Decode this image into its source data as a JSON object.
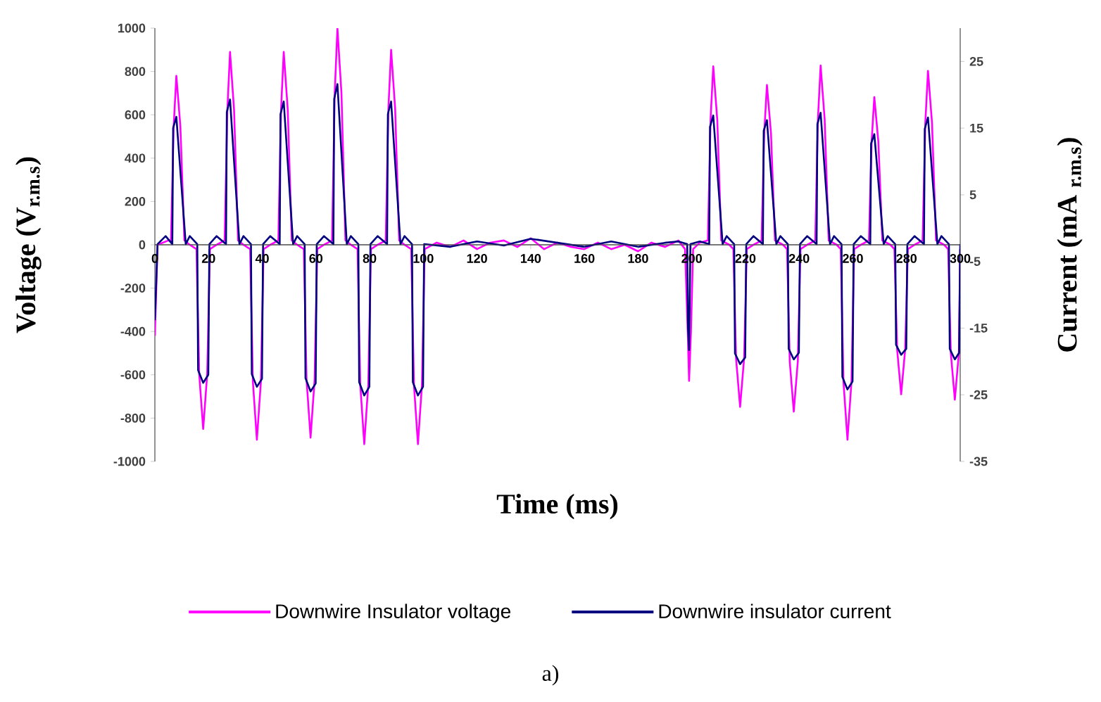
{
  "chart_data": {
    "type": "line",
    "xlabel": "Time (ms)",
    "ylabel": "Voltage (V$_{r.m.s}$)",
    "y2label": "Current (mA $_{r.m.s}$)",
    "annotations": [
      "a)"
    ],
    "xlim": [
      0,
      300
    ],
    "xticks": [
      0,
      20,
      40,
      60,
      80,
      100,
      120,
      140,
      160,
      180,
      200,
      220,
      240,
      260,
      280,
      300
    ],
    "ylim": [
      -1000,
      1000
    ],
    "yticks": [
      -1000,
      -800,
      -600,
      -400,
      -200,
      0,
      200,
      400,
      600,
      800,
      1000
    ],
    "y2lim": [
      -35,
      30
    ],
    "y2ticks": [
      -35,
      -25,
      -15,
      -5,
      5,
      15,
      25
    ],
    "legend": "bottom",
    "series": [
      {
        "name": "Downwire Insulator voltage",
        "color": "#ff00ff",
        "x": [
          0,
          1,
          5,
          6,
          7,
          8,
          9.5,
          11,
          13,
          15.5,
          16.5,
          18,
          19.5,
          20.5,
          23,
          26,
          27,
          28,
          29.5,
          31,
          33,
          35.5,
          36.5,
          38,
          39.5,
          40.5,
          43,
          46,
          47,
          48,
          49.5,
          51,
          53,
          55.5,
          56.5,
          58,
          59.5,
          60.5,
          63,
          66,
          67,
          68,
          69.5,
          71,
          73,
          75.5,
          76.5,
          78,
          79.5,
          80.5,
          83,
          86,
          87,
          88,
          89.5,
          91,
          93,
          95.5,
          96.5,
          98,
          99.5,
          100.5,
          105,
          110,
          115,
          120,
          125,
          130,
          135,
          140,
          145,
          150,
          155,
          160,
          165,
          170,
          175,
          180,
          185,
          190,
          195,
          197.5,
          198.5,
          199,
          199.7,
          200.5,
          203,
          206,
          207,
          208,
          209.5,
          211,
          214,
          215.5,
          216.5,
          218,
          219.5,
          220.5,
          223,
          226,
          227,
          228,
          229.5,
          231,
          234,
          235.5,
          236.5,
          238,
          239.5,
          240.5,
          243,
          246,
          247,
          248,
          249.5,
          251,
          254,
          255.5,
          256.5,
          258,
          259.5,
          260.5,
          263,
          266,
          267,
          268,
          269.5,
          271,
          274,
          275.5,
          276.5,
          278,
          279.5,
          280.5,
          283,
          286,
          287,
          288,
          289.5,
          291,
          294,
          295.5,
          296.5,
          298,
          299.5,
          300
        ],
        "values": [
          -420,
          0,
          20,
          20,
          546,
          780,
          546,
          20,
          0,
          -20,
          -595,
          -850,
          -595,
          -20,
          0,
          20,
          623,
          890,
          623,
          20,
          0,
          -20,
          -630,
          -900,
          -630,
          -20,
          0,
          20,
          623,
          890,
          623,
          20,
          0,
          -20,
          -623,
          -890,
          -623,
          -20,
          0,
          20,
          700,
          1000,
          700,
          20,
          0,
          -20,
          -644,
          -920,
          -644,
          -20,
          0,
          20,
          630,
          900,
          630,
          20,
          0,
          -20,
          -644,
          -920,
          -644,
          -20,
          10,
          -10,
          20,
          -20,
          10,
          20,
          -10,
          30,
          -20,
          10,
          -10,
          -20,
          10,
          -20,
          0,
          -30,
          10,
          -10,
          20,
          -20,
          -400,
          -628,
          -400,
          -20,
          10,
          20,
          577,
          824,
          577,
          20,
          0,
          -20,
          -524,
          -748,
          -524,
          -20,
          0,
          20,
          517,
          738,
          517,
          20,
          0,
          -20,
          -539,
          -770,
          -539,
          -20,
          0,
          20,
          580,
          828,
          580,
          20,
          0,
          -20,
          -630,
          -900,
          -630,
          -20,
          0,
          20,
          477,
          682,
          477,
          20,
          0,
          -20,
          -483,
          -690,
          -483,
          -20,
          0,
          20,
          562,
          803,
          562,
          20,
          0,
          -20,
          -500,
          -715,
          -500,
          -20
        ]
      },
      {
        "name": "Downwire insulator current",
        "color": "#000080",
        "axis": "y2",
        "x": [
          0,
          1,
          4,
          6.5,
          6.8,
          8,
          11.5,
          13,
          15.8,
          16.1,
          18,
          19.9,
          20.3,
          23,
          26.5,
          26.8,
          28,
          31.5,
          33,
          35.8,
          36.1,
          38,
          39.9,
          40.3,
          43,
          46.5,
          46.8,
          48,
          51.5,
          53,
          55.8,
          56.1,
          58,
          59.9,
          60.3,
          63,
          66.5,
          66.8,
          68,
          71.5,
          73,
          75.8,
          76.1,
          78,
          79.9,
          80.3,
          83,
          86.5,
          86.8,
          88,
          91.5,
          93,
          95.8,
          96.1,
          98,
          99.9,
          100.3,
          110,
          120,
          130,
          140,
          150,
          160,
          170,
          180,
          190,
          195,
          198.3,
          198.6,
          199,
          199.5,
          203,
          206.5,
          206.8,
          208,
          211.5,
          213,
          215.8,
          216.1,
          218,
          219.9,
          220.3,
          223,
          226.5,
          226.8,
          228,
          231.5,
          233,
          235.8,
          236.1,
          238,
          239.9,
          240.3,
          243,
          246.5,
          246.8,
          248,
          251.5,
          253,
          255.8,
          256.1,
          258,
          259.9,
          260.3,
          263,
          266.5,
          266.8,
          268,
          271.5,
          273,
          275.8,
          276.1,
          278,
          279.9,
          280.3,
          283,
          286.5,
          286.8,
          288,
          291.5,
          293,
          295.8,
          296.1,
          298,
          299.6,
          300
        ],
        "values": [
          -13.8,
          -2.4,
          -1.2,
          -2.4,
          15.0,
          16.7,
          -2.4,
          -1.2,
          -2.4,
          -21.3,
          -23.2,
          -22.0,
          -2.4,
          -1.2,
          -2.4,
          17.4,
          19.3,
          -2.4,
          -1.2,
          -2.4,
          -21.9,
          -23.8,
          -22.6,
          -2.4,
          -1.2,
          -2.4,
          17.1,
          19.0,
          -2.4,
          -1.2,
          -2.4,
          -22.5,
          -24.5,
          -23.3,
          -2.4,
          -1.2,
          -2.4,
          19.4,
          21.6,
          -2.4,
          -1.2,
          -2.4,
          -23.1,
          -25.1,
          -23.8,
          -2.4,
          -1.2,
          -2.4,
          17.1,
          19.0,
          -2.4,
          -1.2,
          -2.4,
          -23.1,
          -25.1,
          -23.8,
          -2.4,
          -2.8,
          -2.0,
          -2.6,
          -1.6,
          -2.2,
          -2.8,
          -2.0,
          -2.8,
          -2.2,
          -2.0,
          -2.4,
          -15.0,
          -18.3,
          -2.4,
          -2.0,
          -2.4,
          15.2,
          16.9,
          -2.4,
          -1.2,
          -2.4,
          -18.8,
          -20.4,
          -19.4,
          -2.4,
          -1.2,
          -2.4,
          14.6,
          16.2,
          -2.4,
          -1.2,
          -2.4,
          -18.1,
          -19.7,
          -18.7,
          -2.4,
          -1.2,
          -2.4,
          15.6,
          17.3,
          -2.4,
          -1.2,
          -2.4,
          -22.3,
          -24.2,
          -23.0,
          -2.4,
          -1.2,
          -2.4,
          12.7,
          14.1,
          -2.4,
          -1.2,
          -2.4,
          -17.5,
          -19.0,
          -18.1,
          -2.4,
          -1.2,
          -2.4,
          14.9,
          16.6,
          -2.4,
          -1.2,
          -2.4,
          -18.1,
          -19.7,
          -18.7,
          -2.4
        ]
      }
    ]
  }
}
